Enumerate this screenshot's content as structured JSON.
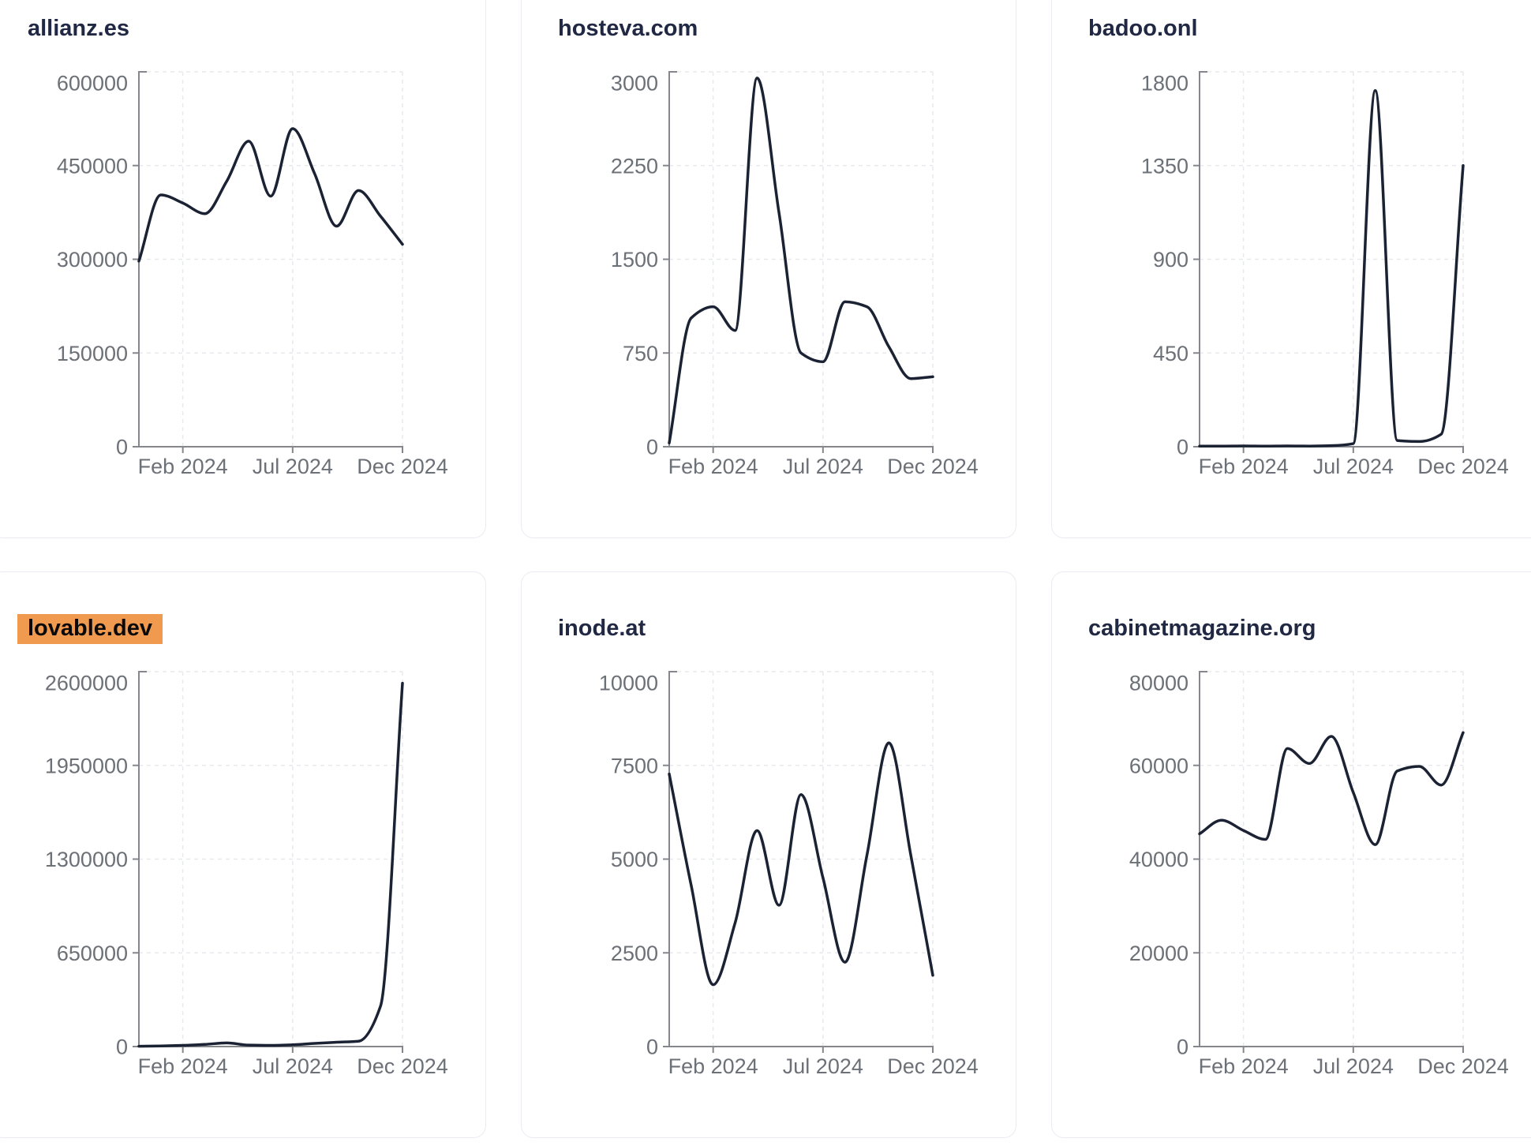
{
  "page": {
    "background": "#ffffff"
  },
  "theme": {
    "card_background": "#ffffff",
    "card_border": "#e9ecf2",
    "title_color": "#212843",
    "line_color": "#1b2233",
    "axis_color": "#85878c",
    "grid_color": "#e8e9ec",
    "tick_label_color": "#6c7077",
    "highlight_background": "#f09a4f",
    "highlight_text_color": "#0a0a0a"
  },
  "x_axis": {
    "tick_labels": [
      "Feb 2024",
      "Jul 2024",
      "Dec 2024"
    ],
    "tick_month_indices": [
      2,
      7,
      12
    ]
  },
  "chart_data": [
    {
      "type": "line",
      "title": "allianz.es",
      "highlighted": false,
      "x": [
        "Dec 2023",
        "Jan 2024",
        "Feb 2024",
        "Mar 2024",
        "Apr 2024",
        "May 2024",
        "Jun 2024",
        "Jul 2024",
        "Aug 2024",
        "Sep 2024",
        "Oct 2024",
        "Nov 2024",
        "Dec 2024"
      ],
      "values": [
        297000,
        403000,
        390000,
        373000,
        425000,
        489000,
        401000,
        509000,
        437000,
        353000,
        410000,
        369000,
        324000
      ],
      "y_ticks": [
        600000,
        450000,
        300000,
        150000,
        0
      ],
      "ylim": [
        0,
        600000
      ],
      "x_tick_labels": [
        "Feb 2024",
        "Jul 2024",
        "Dec 2024"
      ],
      "grid": "dashed",
      "curve": "monotone"
    },
    {
      "type": "line",
      "title": "hosteva.com",
      "highlighted": false,
      "x": [
        "Dec 2023",
        "Jan 2024",
        "Feb 2024",
        "Mar 2024",
        "Apr 2024",
        "May 2024",
        "Jun 2024",
        "Jul 2024",
        "Aug 2024",
        "Sep 2024",
        "Oct 2024",
        "Nov 2024",
        "Dec 2024"
      ],
      "values": [
        30,
        1030,
        1120,
        930,
        2950,
        1870,
        750,
        680,
        1160,
        1120,
        800,
        545,
        560
      ],
      "y_ticks": [
        3000,
        2250,
        1500,
        750,
        0
      ],
      "ylim": [
        0,
        3000
      ],
      "x_tick_labels": [
        "Feb 2024",
        "Jul 2024",
        "Dec 2024"
      ],
      "grid": "dashed",
      "curve": "monotone"
    },
    {
      "type": "line",
      "title": "badoo.onl",
      "highlighted": false,
      "x": [
        "Dec 2023",
        "Jan 2024",
        "Feb 2024",
        "Mar 2024",
        "Apr 2024",
        "May 2024",
        "Jun 2024",
        "Jul 2024",
        "Aug 2024",
        "Sep 2024",
        "Oct 2024",
        "Nov 2024",
        "Dec 2024"
      ],
      "values": [
        3,
        3,
        4,
        3,
        4,
        3,
        5,
        15,
        1710,
        30,
        25,
        60,
        1350
      ],
      "y_ticks": [
        1800,
        1350,
        900,
        450,
        0
      ],
      "ylim": [
        0,
        1800
      ],
      "x_tick_labels": [
        "Feb 2024",
        "Jul 2024",
        "Dec 2024"
      ],
      "grid": "dashed",
      "curve": "monotone"
    },
    {
      "type": "line",
      "title": "lovable.dev",
      "highlighted": true,
      "x": [
        "Dec 2023",
        "Jan 2024",
        "Feb 2024",
        "Mar 2024",
        "Apr 2024",
        "May 2024",
        "Jun 2024",
        "Jul 2024",
        "Aug 2024",
        "Sep 2024",
        "Oct 2024",
        "Nov 2024",
        "Dec 2024"
      ],
      "values": [
        2000,
        4000,
        8000,
        15000,
        25000,
        10000,
        8000,
        12000,
        22000,
        30000,
        37000,
        280000,
        2520000
      ],
      "y_ticks": [
        2600000,
        1950000,
        1300000,
        650000,
        0
      ],
      "ylim": [
        0,
        2600000
      ],
      "x_tick_labels": [
        "Feb 2024",
        "Jul 2024",
        "Dec 2024"
      ],
      "grid": "dashed",
      "curve": "monotone"
    },
    {
      "type": "line",
      "title": "inode.at",
      "highlighted": false,
      "x": [
        "Dec 2023",
        "Jan 2024",
        "Feb 2024",
        "Mar 2024",
        "Apr 2024",
        "May 2024",
        "Jun 2024",
        "Jul 2024",
        "Aug 2024",
        "Sep 2024",
        "Oct 2024",
        "Nov 2024",
        "Dec 2024"
      ],
      "values": [
        7270,
        4300,
        1650,
        3300,
        5760,
        3770,
        6720,
        4500,
        2250,
        5100,
        8100,
        5100,
        1900
      ],
      "y_ticks": [
        10000,
        7500,
        5000,
        2500,
        0
      ],
      "ylim": [
        0,
        10000
      ],
      "x_tick_labels": [
        "Feb 2024",
        "Jul 2024",
        "Dec 2024"
      ],
      "grid": "dashed",
      "curve": "monotone"
    },
    {
      "type": "line",
      "title": "cabinetmagazine.org",
      "highlighted": false,
      "x": [
        "Dec 2023",
        "Jan 2024",
        "Feb 2024",
        "Mar 2024",
        "Apr 2024",
        "May 2024",
        "Jun 2024",
        "Jul 2024",
        "Aug 2024",
        "Sep 2024",
        "Oct 2024",
        "Nov 2024",
        "Dec 2024"
      ],
      "values": [
        45400,
        48300,
        46100,
        44200,
        63600,
        60400,
        66200,
        54200,
        43100,
        58800,
        59800,
        55800,
        67000
      ],
      "y_ticks": [
        80000,
        60000,
        40000,
        20000,
        0
      ],
      "ylim": [
        0,
        80000
      ],
      "x_tick_labels": [
        "Feb 2024",
        "Jul 2024",
        "Dec 2024"
      ],
      "grid": "dashed",
      "curve": "monotone"
    }
  ]
}
